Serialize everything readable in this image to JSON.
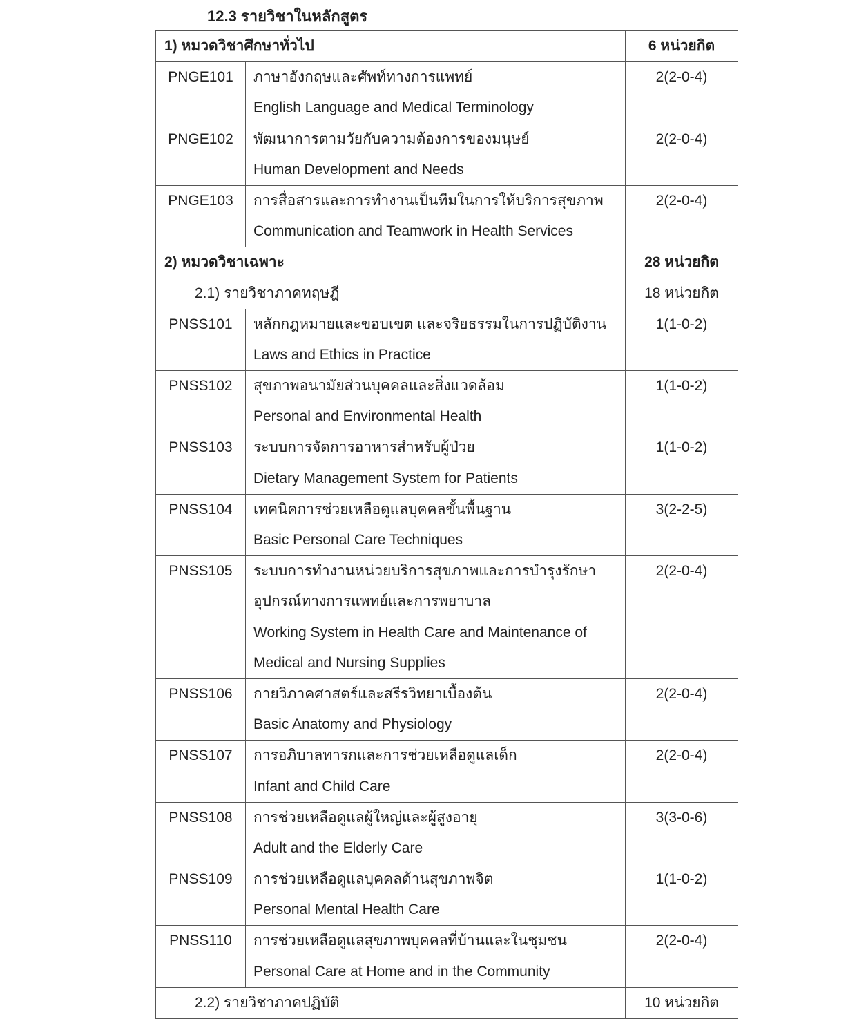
{
  "title": "12.3 รายวิชาในหลักสูตร",
  "sections": [
    {
      "label": "1) หมวดวิชาศึกษาทั่วไป",
      "credits": "6 หน่วยกิต",
      "courses": [
        {
          "code": "PNGE101",
          "lines": [
            "ภาษาอังกฤษและศัพท์ทางการแพทย์",
            "English Language and Medical Terminology"
          ],
          "credits": "2(2-0-4)"
        },
        {
          "code": "PNGE102",
          "lines": [
            "พัฒนาการตามวัยกับความต้องการของมนุษย์",
            "Human Development and Needs"
          ],
          "credits": "2(2-0-4)"
        },
        {
          "code": "PNGE103",
          "lines": [
            "การสื่อสารและการทำงานเป็นทีมในการให้บริการสุขภาพ",
            "Communication and Teamwork in Health Services"
          ],
          "credits": "2(2-0-4)"
        }
      ]
    },
    {
      "label": "2) หมวดวิชาเฉพาะ",
      "credits": "28 หน่วยกิต",
      "sub_label": "2.1) รายวิชาภาคทฤษฎี",
      "sub_credits": "18 หน่วยกิต",
      "courses": [
        {
          "code": "PNSS101",
          "lines": [
            "หลักกฎหมายและขอบเขต และจริยธรรมในการปฏิบัติงาน",
            "Laws and Ethics in Practice"
          ],
          "credits": "1(1-0-2)"
        },
        {
          "code": "PNSS102",
          "lines": [
            "สุขภาพอนามัยส่วนบุคคลและสิ่งแวดล้อม",
            "Personal and Environmental Health"
          ],
          "credits": "1(1-0-2)"
        },
        {
          "code": "PNSS103",
          "lines": [
            "ระบบการจัดการอาหารสำหรับผู้ป่วย",
            "Dietary Management System for Patients"
          ],
          "credits": "1(1-0-2)"
        },
        {
          "code": "PNSS104",
          "lines": [
            "เทคนิคการช่วยเหลือดูแลบุคคลขั้นพื้นฐาน",
            "Basic Personal Care Techniques"
          ],
          "credits": "3(2-2-5)"
        },
        {
          "code": "PNSS105",
          "lines": [
            "ระบบการทำงานหน่วยบริการสุขภาพและการบำรุงรักษา",
            "อุปกรณ์ทางการแพทย์และการพยาบาล",
            "Working System in Health Care and Maintenance of",
            "Medical and Nursing Supplies"
          ],
          "credits": "2(2-0-4)"
        },
        {
          "code": "PNSS106",
          "lines": [
            "กายวิภาคศาสตร์และสรีรวิทยาเบื้องต้น",
            "Basic Anatomy and Physiology"
          ],
          "credits": "2(2-0-4)"
        },
        {
          "code": "PNSS107",
          "lines": [
            "การอภิบาลทารกและการช่วยเหลือดูแลเด็ก",
            "Infant and Child Care"
          ],
          "credits": "2(2-0-4)"
        },
        {
          "code": "PNSS108",
          "lines": [
            "การช่วยเหลือดูแลผู้ใหญ่และผู้สูงอายุ",
            "Adult and the Elderly Care"
          ],
          "credits": "3(3-0-6)"
        },
        {
          "code": "PNSS109",
          "lines": [
            "การช่วยเหลือดูแลบุคคลด้านสุขภาพจิต",
            "Personal Mental Health Care"
          ],
          "credits": "1(1-0-2)"
        },
        {
          "code": "PNSS110",
          "lines": [
            "การช่วยเหลือดูแลสุขภาพบุคคลที่บ้านและในชุมชน",
            "Personal Care at Home and in the Community"
          ],
          "credits": "2(2-0-4)"
        }
      ],
      "footer_label": "2.2) รายวิชาภาคปฏิบัติ",
      "footer_credits": "10 หน่วยกิต"
    }
  ]
}
